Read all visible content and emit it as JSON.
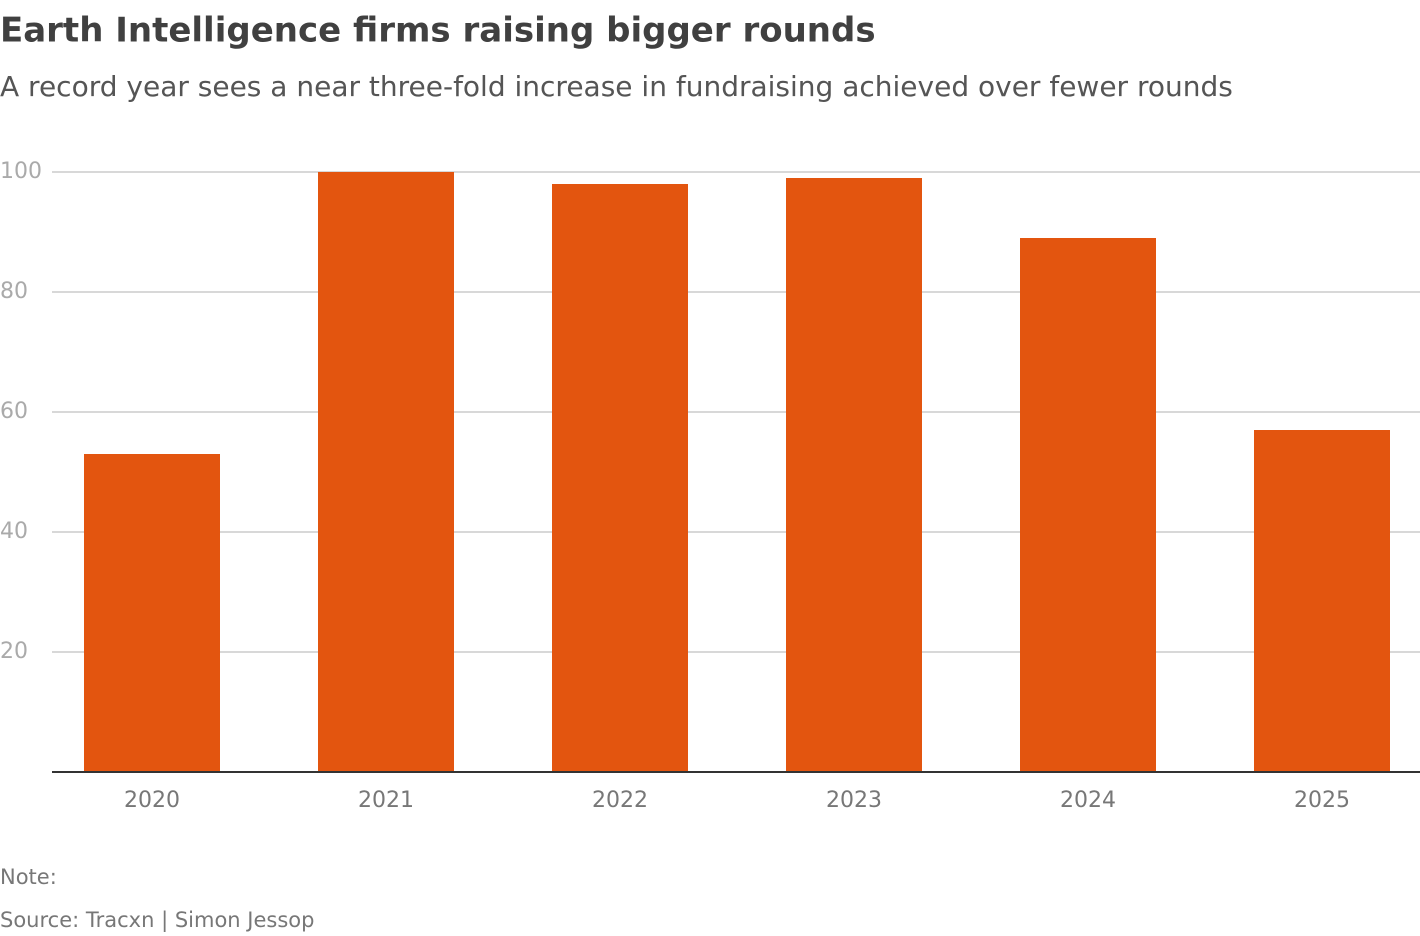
{
  "chart_data": {
    "type": "bar",
    "title": "Earth Intelligence firms raising bigger rounds",
    "subtitle": "A record year sees a near three-fold increase in fundraising achieved over fewer rounds",
    "categories": [
      "2020",
      "2021",
      "2022",
      "2023",
      "2024",
      "2025"
    ],
    "values": [
      53,
      100,
      98,
      99,
      89,
      57
    ],
    "color": "#e3550f",
    "ylim": [
      0,
      100
    ],
    "yticks": [
      20,
      40,
      60,
      80,
      100
    ],
    "grid": true,
    "note": "Note:",
    "source": "Source: Tracxn | Simon Jessop"
  }
}
